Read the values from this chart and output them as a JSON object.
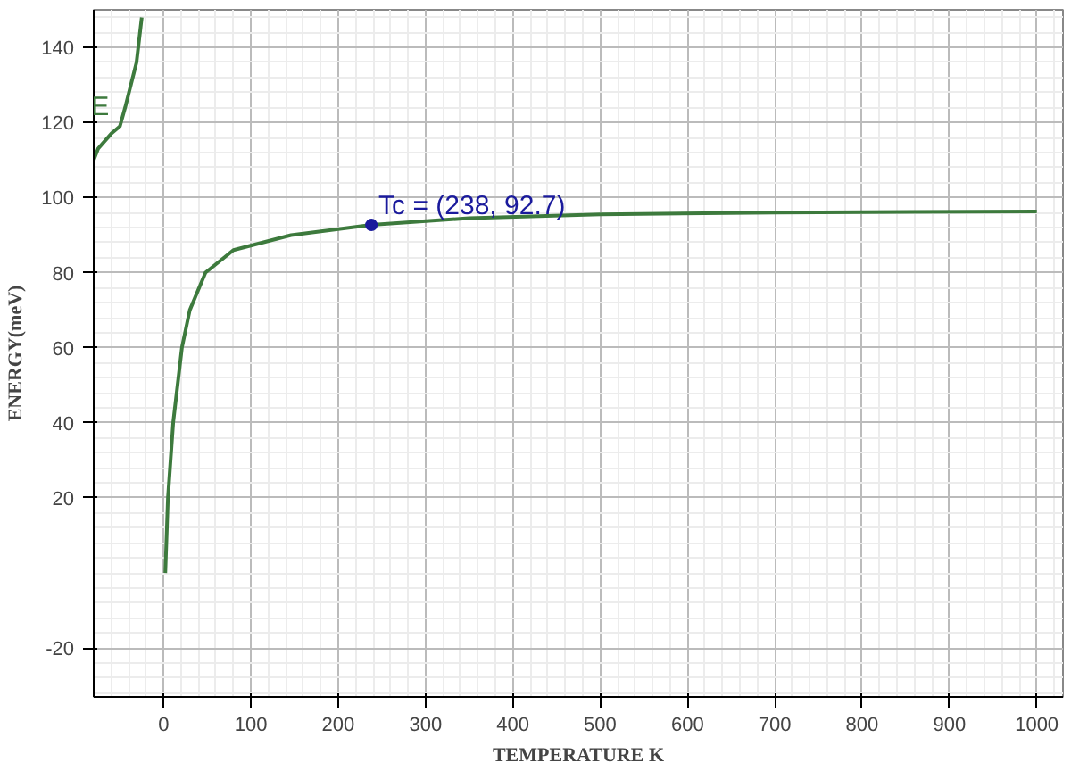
{
  "chart_data": {
    "type": "line",
    "xlabel": "TEMPERATURE K",
    "ylabel": "ENERGY(meV)",
    "xlim": [
      -80,
      1030
    ],
    "ylim": [
      -33,
      150
    ],
    "xticks": [
      0,
      100,
      200,
      300,
      400,
      500,
      600,
      700,
      800,
      900,
      1000
    ],
    "yticks": [
      -20,
      20,
      40,
      60,
      80,
      100,
      120,
      140
    ],
    "grid": true,
    "marker": "none",
    "line_style": "solid",
    "series": [
      {
        "color": "#3d7a3d",
        "x": [
          2,
          5,
          11,
          21,
          30,
          48,
          80,
          146,
          238,
          350,
          500,
          700,
          1000
        ],
        "values": [
          0,
          20,
          40,
          60,
          70,
          80,
          86,
          90,
          92.7,
          94.5,
          95.5,
          96,
          96.3
        ]
      },
      {
        "name": "E",
        "color": "#3d7a3d",
        "x": [
          -80,
          -75,
          -60,
          -50,
          -44,
          -31,
          -25
        ],
        "values": [
          110,
          113,
          117,
          119,
          124,
          136,
          148
        ]
      },
      {
        "type": "scatter",
        "marker": "circle",
        "color": "#1a1a9c",
        "x": [
          238
        ],
        "values": [
          92.7
        ]
      }
    ],
    "annotations": [
      {
        "text": "Tc = (238, 92.7)",
        "x": 238,
        "y": 92.7
      }
    ]
  }
}
